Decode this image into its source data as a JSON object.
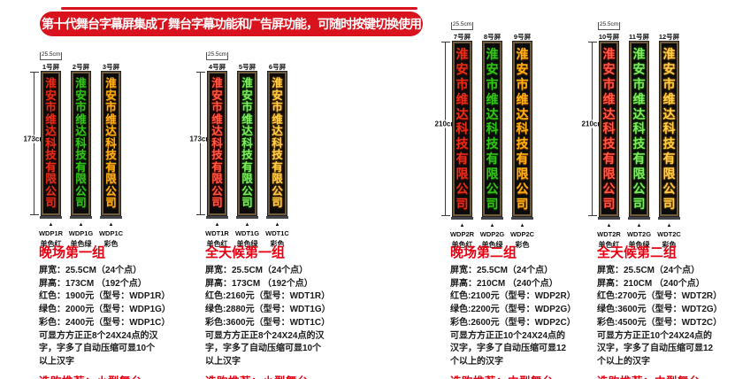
{
  "banner": {
    "text": "第十代舞台字幕屏集成了舞台字幕功能和广告屏功能，可随时按键切换使用",
    "bg_color": "#d8131d"
  },
  "company": "淮安市维达科技有限公司",
  "arrow_icon": "▲",
  "accent_colors": {
    "led_red": "#e82c17",
    "led_green": "#33c412",
    "led_multi": "#ffb10a",
    "heading_red": "#e60012"
  },
  "groups": [
    {
      "title": "晚场第一组",
      "variant": "normal",
      "width_label": "25.5cm",
      "height_label": "173cm",
      "panels": [
        {
          "label": "1号屏",
          "model": "WDP1R",
          "color_name": "单色红",
          "color": "red"
        },
        {
          "label": "2号屏",
          "model": "WDP1G",
          "color_name": "单色绿",
          "color": "green"
        },
        {
          "label": "3号屏",
          "model": "WDP1C",
          "color_name": "彩色",
          "color": "multi"
        }
      ],
      "specs": [
        "屏宽：25.5CM（24个点）",
        "屏高：173CM （192个点）",
        "红色：1900元（型号：WDP1R）",
        "绿色：2000元（型号：WDP1G）",
        "彩色：2400元（型号：WDP1C）",
        "可显方方正正8个24X24点的汉",
        "字，字多了自动压缩可显10个",
        "以上汉字"
      ],
      "recommend": "选购推荐：小型舞台"
    },
    {
      "title": "全天候第一组",
      "variant": "bright",
      "width_label": "25.5cm",
      "height_label": "173cm",
      "panels": [
        {
          "label": "4号屏",
          "model": "WDT1R",
          "color_name": "单色红",
          "color": "red"
        },
        {
          "label": "5号屏",
          "model": "WDT1G",
          "color_name": "单色绿",
          "color": "green"
        },
        {
          "label": "6号屏",
          "model": "WDT1C",
          "color_name": "彩色",
          "color": "multi"
        }
      ],
      "specs": [
        "屏宽：25.5CM（24个点）",
        "屏高：173CM （192个点）",
        "红色:2160元（型号：WDT1R）",
        "绿色:2880元（型号：WDT1G）",
        "彩色:3600元（型号：WDT1C）",
        "可显方方正正8个24X24点的汉",
        "字，字多了自动压缩可显10个",
        "以上汉字"
      ],
      "recommend": "选购推荐：小型舞台"
    },
    {
      "title": "晚场第二组",
      "variant": "normal",
      "width_label": "25.5cm",
      "height_label": "210cm",
      "panels": [
        {
          "label": "7号屏",
          "model": "WDP2R",
          "color_name": "单色红",
          "color": "red"
        },
        {
          "label": "8号屏",
          "model": "WDP2G",
          "color_name": "单色绿",
          "color": "green"
        },
        {
          "label": "9号屏",
          "model": "WDP2C",
          "color_name": "彩色",
          "color": "multi"
        }
      ],
      "specs": [
        "屏宽：25.5CM（24个点）",
        "屏高：210CM （240个点）",
        "红色:2100元（型号：WDP2R）",
        "绿色:2200元（型号：WDP2G）",
        "彩色:2600元（型号：WDP2C）",
        "可显方方正正10个24X24点的",
        "汉字，字多了自动压缩可显12",
        "个以上的汉字"
      ],
      "recommend": "选购推荐：中型舞台"
    },
    {
      "title": "全天候第二组",
      "variant": "bright",
      "width_label": "25.5cm",
      "height_label": "210cm",
      "panels": [
        {
          "label": "10号屏",
          "model": "WDT2R",
          "color_name": "单色红",
          "color": "red"
        },
        {
          "label": "11号屏",
          "model": "WDT2G",
          "color_name": "单色绿",
          "color": "green"
        },
        {
          "label": "12号屏",
          "model": "WDT2C",
          "color_name": "彩色",
          "color": "multi"
        }
      ],
      "specs": [
        "屏宽：25.5CM（24个点）",
        "屏高：210CM （240个点）",
        "红色:2700元（型号：WDT2R）",
        "绿色:3600元（型号：WDT2G）",
        "彩色:4500元（型号：WDT2C）",
        "可显方方正正10个24X24点的",
        "汉字，字多了自动压缩可显12",
        "个以上的汉字"
      ],
      "recommend": "选购推荐：中型舞台"
    }
  ]
}
